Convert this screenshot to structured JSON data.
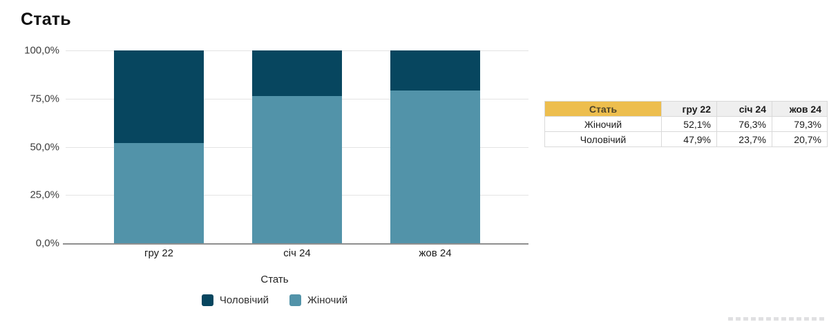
{
  "page": {
    "title": "Стать"
  },
  "chart_data": {
    "type": "bar",
    "variant": "stacked-100-percent",
    "title": "Стать",
    "categories": [
      "гру 22",
      "січ 24",
      "жов 24"
    ],
    "series": [
      {
        "name": "Жіночий",
        "color": "#5293A9",
        "values": [
          52.1,
          76.3,
          79.3
        ]
      },
      {
        "name": "Чоловічий",
        "color": "#07465F",
        "values": [
          47.9,
          23.7,
          20.7
        ]
      }
    ],
    "xlabel": "Стать",
    "ylabel": "",
    "ylim": [
      0,
      100
    ],
    "yticks": [
      {
        "label": "100,0%",
        "value": 100
      },
      {
        "label": "75,0%",
        "value": 75
      },
      {
        "label": "50,0%",
        "value": 50
      },
      {
        "label": "25,0%",
        "value": 25
      },
      {
        "label": "0,0%",
        "value": 0
      }
    ],
    "grid": true,
    "legend_position": "bottom",
    "legend": [
      {
        "label": "Чоловічий",
        "color": "#07465F"
      },
      {
        "label": "Жіночий",
        "color": "#5293A9"
      }
    ]
  },
  "table": {
    "columns": [
      "Стать",
      "гру 22",
      "січ 24",
      "жов 24"
    ],
    "rows": [
      {
        "label": "Жіночий",
        "values": [
          "52,1%",
          "76,3%",
          "79,3%"
        ]
      },
      {
        "label": "Чоловічий",
        "values": [
          "47,9%",
          "23,7%",
          "20,7%"
        ]
      }
    ],
    "colors": {
      "header_accent": "#EDBE4E",
      "header_gray": "#EFEFEF"
    }
  }
}
